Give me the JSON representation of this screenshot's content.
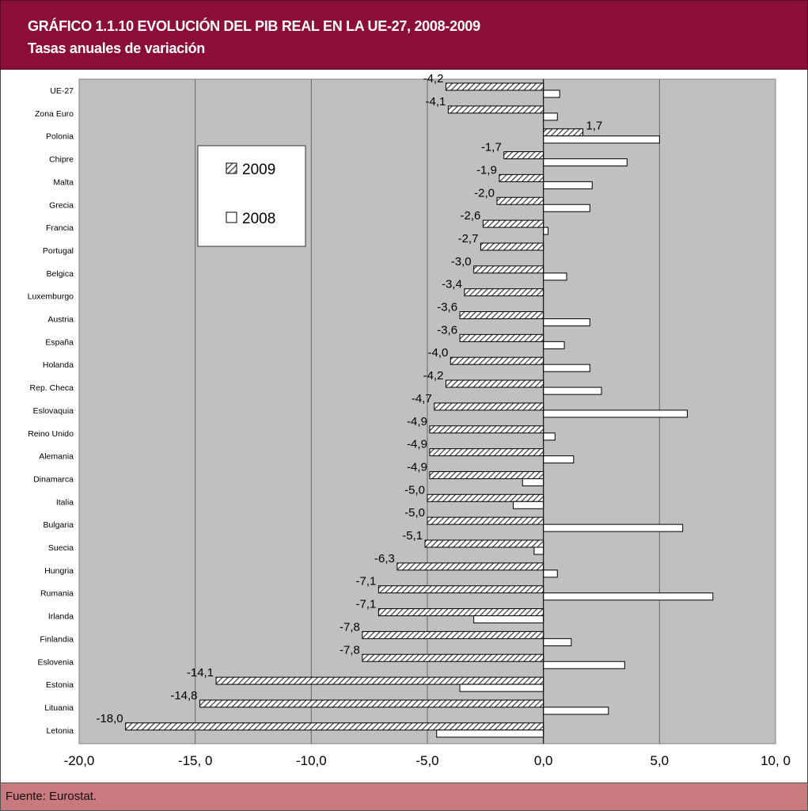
{
  "header": {
    "title": "GRÁFICO 1.1.10 EVOLUCIÓN DEL PIB REAL EN LA UE-27, 2008-2009",
    "subtitle": "Tasas anuales de variación"
  },
  "footer": {
    "source": "Fuente: Eurostat."
  },
  "chart_data": {
    "type": "bar",
    "orientation": "horizontal",
    "categories": [
      "UE-27",
      "Zona Euro",
      "Polonia",
      "Chipre",
      "Malta",
      "Grecia",
      "Francia",
      "Portugal",
      "Belgica",
      "Luxemburgo",
      "Austria",
      "España",
      "Holanda",
      "Rep. Checa",
      "Eslovaquia",
      "Reino Unido",
      "Alemania",
      "Dinamarca",
      "Italia",
      "Bulgaria",
      "Suecia",
      "Hungria",
      "Rumania",
      "Irlanda",
      "Finlandia",
      "Eslovenia",
      "Estonia",
      "Lituania",
      "Letonia"
    ],
    "series": [
      {
        "name": "2009",
        "pattern": "hatched",
        "values": [
          -4.2,
          -4.1,
          1.7,
          -1.7,
          -1.9,
          -2.0,
          -2.6,
          -2.7,
          -3.0,
          -3.4,
          -3.6,
          -3.6,
          -4.0,
          -4.2,
          -4.7,
          -4.9,
          -4.9,
          -4.9,
          -5.0,
          -5.0,
          -5.1,
          -6.3,
          -7.1,
          -7.1,
          -7.8,
          -7.8,
          -14.1,
          -14.8,
          -18.0
        ],
        "labels": [
          "-4,2",
          "-4,1",
          "1,7",
          "-1,7",
          "-1,9",
          "-2,0",
          "-2,6",
          "-2,7",
          "-3,0",
          "-3,4",
          "-3,6",
          "-3,6",
          "-4,0",
          "-4,2",
          "-4,7",
          "-4,9",
          "-4,9",
          "-4,9",
          "-5,0",
          "-5,0",
          "-5,1",
          "-6,3",
          "-7,1",
          "-7,1",
          "-7,8",
          "-7,8",
          "-14,1",
          "-14,8",
          "-18,0"
        ]
      },
      {
        "name": "2008",
        "pattern": "white",
        "values": [
          0.7,
          0.6,
          5.0,
          3.6,
          2.1,
          2.0,
          0.2,
          0.0,
          1.0,
          0.0,
          2.0,
          0.9,
          2.0,
          2.5,
          6.2,
          0.5,
          1.3,
          -0.9,
          -1.3,
          6.0,
          -0.4,
          0.6,
          7.3,
          -3.0,
          1.2,
          3.5,
          -3.6,
          2.8,
          -4.6
        ]
      }
    ],
    "xlim": [
      -20,
      10
    ],
    "xticks": [
      -20,
      -15,
      -10,
      -5,
      0,
      5,
      10
    ],
    "xtick_labels": [
      "-20,0",
      "-15, 0",
      "-10,0",
      "-5,0",
      "0,0",
      "5,0",
      "10, 0"
    ],
    "grid": "vertical",
    "legend_position": "upper-left",
    "colors": {
      "plot_background": "#c0c0c0",
      "header": "#8b0e38",
      "footer": "#c97a7f",
      "bar_outline": "#000000",
      "hatch": "#555555"
    }
  }
}
